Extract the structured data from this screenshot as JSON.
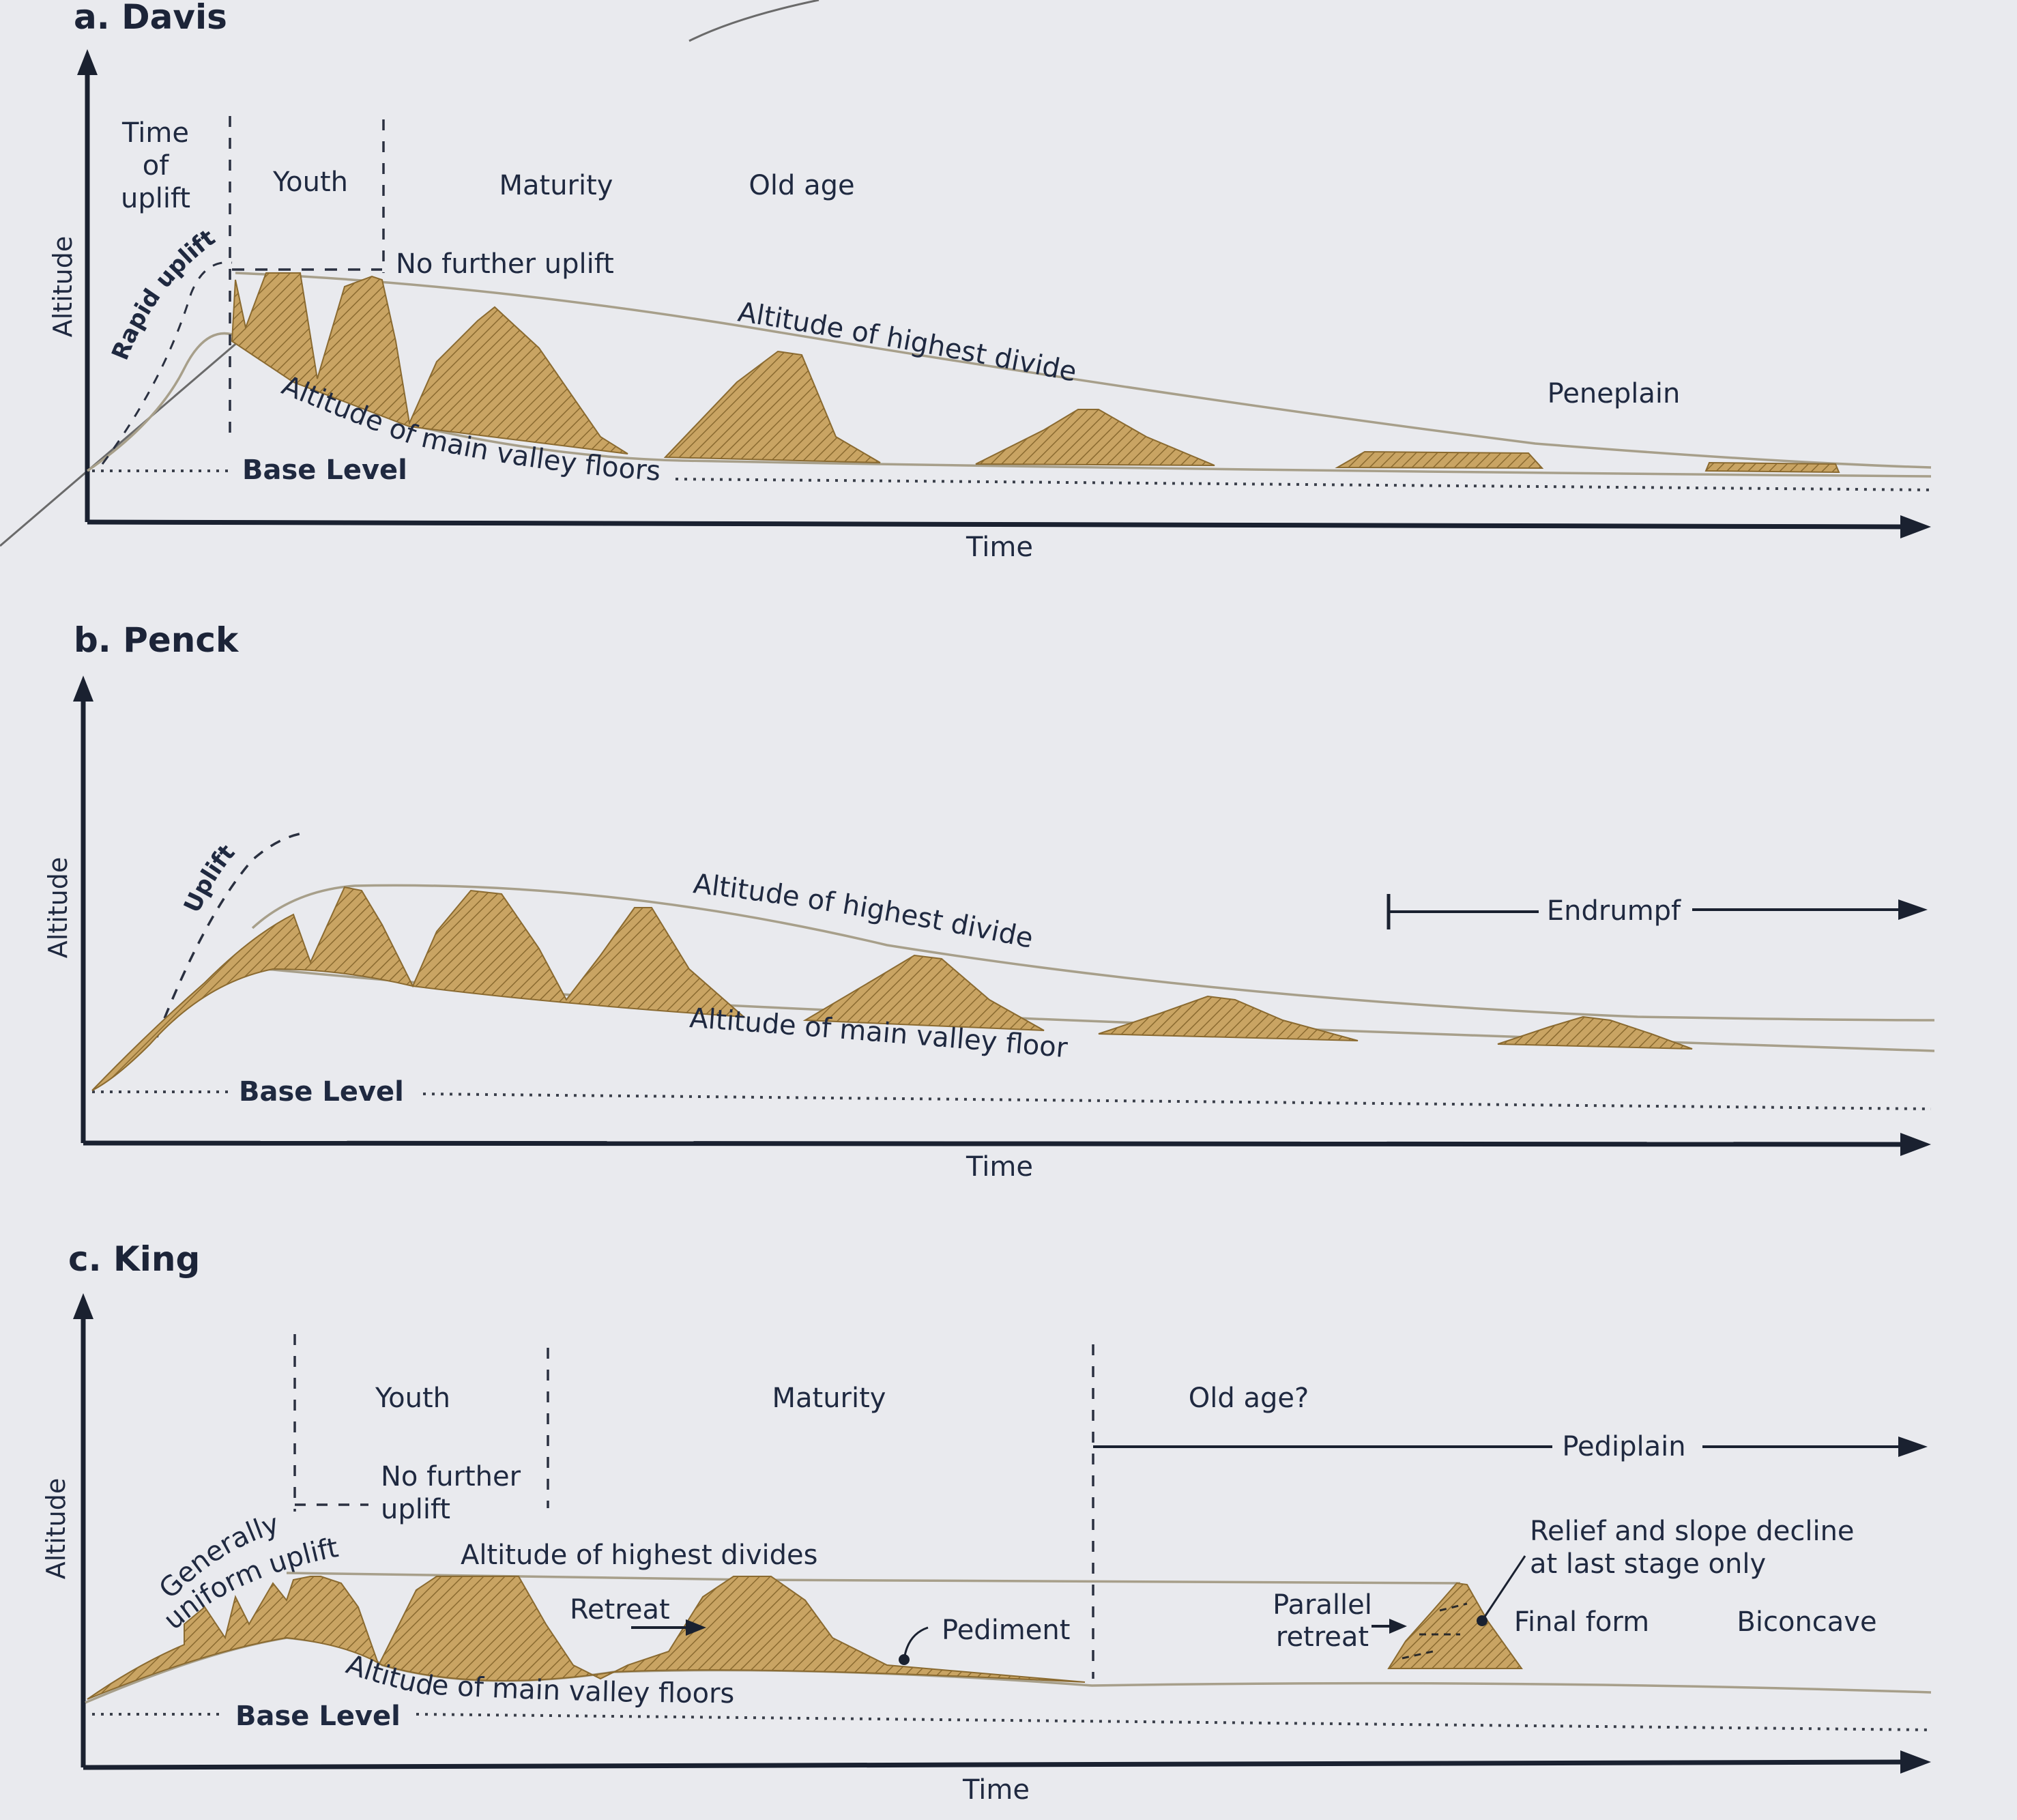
{
  "panels": {
    "davis": {
      "title": "a. Davis",
      "y_axis": "Altitude",
      "x_axis": "Time",
      "time_of_uplift": [
        "Time",
        "of",
        "uplift"
      ],
      "youth": "Youth",
      "maturity": "Maturity",
      "old_age": "Old age",
      "rapid_uplift": "Rapid uplift",
      "no_further_uplift": "No further uplift",
      "highest_divides": "Altitude of highest divides",
      "valley_floors": "Altitude of main valley floors",
      "base_level": "Base Level",
      "peneplain": "Peneplain"
    },
    "penck": {
      "title": "b. Penck",
      "y_axis": "Altitude",
      "x_axis": "Time",
      "uplift": "Uplift",
      "highest_divides": "Altitude of highest divides",
      "valley_floors": "Altitude of main valley floors",
      "base_level": "Base Level",
      "endrumpf": "Endrumpf"
    },
    "king": {
      "title": "c. King",
      "y_axis": "Altitude",
      "x_axis": "Time",
      "youth": "Youth",
      "maturity": "Maturity",
      "old_age": "Old age?",
      "no_further_uplift": [
        "No further",
        "uplift"
      ],
      "generally_uniform_uplift": [
        "Generally",
        "uniform uplift"
      ],
      "highest_divides": "Altitude of highest divides",
      "retreat": "Retreat",
      "pediment": "Pediment",
      "parallel_retreat": [
        "Parallel",
        "retreat"
      ],
      "pediplain": "Pediplain",
      "relief_decline": [
        "Relief and slope decline",
        "at last stage only"
      ],
      "final_form": "Final form",
      "biconcave": "Biconcave",
      "valley_floors": "Altitude of main valley floors",
      "base_level": "Base Level"
    }
  },
  "colors": {
    "land_fill": "#c9a463",
    "land_hatch": "#8a6a30",
    "axis": "#1a2130",
    "guide_line": "#a79f8a",
    "text": "#1f2940"
  }
}
